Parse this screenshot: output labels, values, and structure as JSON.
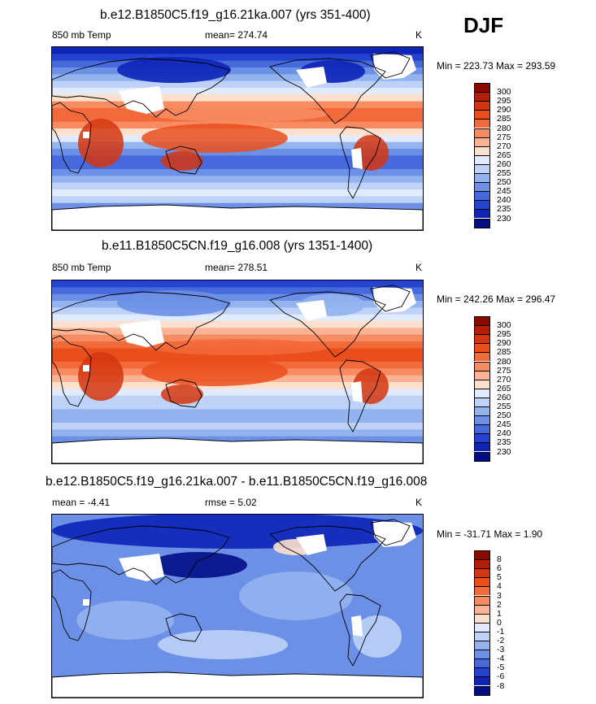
{
  "season": "DJF",
  "panels": [
    {
      "title": "b.e12.B1850C5.f19_g16.21ka.007 (yrs 351-400)",
      "left_label": "850 mb Temp",
      "center_label": "mean= 274.74",
      "right_label": "K",
      "minmax": "Min = 223.73 Max = 293.59",
      "colorbar": {
        "labels": [
          "300",
          "295",
          "290",
          "285",
          "280",
          "275",
          "270",
          "265",
          "260",
          "255",
          "250",
          "245",
          "240",
          "235",
          "230"
        ],
        "colors": [
          "#8a0a00",
          "#b41d06",
          "#d3360f",
          "#e94e1c",
          "#f36a3a",
          "#f78c63",
          "#fab493",
          "#fde0cc",
          "#e1ebfb",
          "#bdd2f6",
          "#93b3ee",
          "#6c90e6",
          "#4669dc",
          "#2444cf",
          "#0d24b7",
          "#030e86"
        ]
      },
      "field_offset": 0
    },
    {
      "title": "b.e11.B1850C5CN.f19_g16.008 (yrs 1351-1400)",
      "left_label": "850 mb Temp",
      "center_label": "mean= 278.51",
      "right_label": "K",
      "minmax": "Min = 242.26 Max = 296.47",
      "colorbar": {
        "labels": [
          "300",
          "295",
          "290",
          "285",
          "280",
          "275",
          "270",
          "265",
          "260",
          "255",
          "250",
          "245",
          "240",
          "235",
          "230"
        ],
        "colors": [
          "#8a0a00",
          "#b41d06",
          "#d3360f",
          "#e94e1c",
          "#f36a3a",
          "#f78c63",
          "#fab493",
          "#fde0cc",
          "#e1ebfb",
          "#bdd2f6",
          "#93b3ee",
          "#6c90e6",
          "#4669dc",
          "#2444cf",
          "#0d24b7",
          "#030e86"
        ]
      },
      "field_offset": 1
    },
    {
      "title": "b.e12.B1850C5.f19_g16.21ka.007 - b.e11.B1850C5CN.f19_g16.008",
      "left_label": "mean =  -4.41",
      "center_label": "rmse =   5.02",
      "right_label": "K",
      "minmax": "Min = -31.71 Max =   1.90",
      "colorbar": {
        "labels": [
          "8",
          "6",
          "5",
          "4",
          "3",
          "2",
          "1",
          "0",
          "-1",
          "-2",
          "-3",
          "-4",
          "-5",
          "-6",
          "-8"
        ],
        "colors": [
          "#8a0a00",
          "#b41d06",
          "#d3360f",
          "#e94e1c",
          "#f36a3a",
          "#f78c63",
          "#fab493",
          "#fde0cc",
          "#e1ebfb",
          "#bdd2f6",
          "#93b3ee",
          "#6c90e6",
          "#4669dc",
          "#2444cf",
          "#0d24b7",
          "#030e86"
        ]
      },
      "field_offset": 2
    }
  ],
  "chart_data": {
    "type": "heatmap",
    "title": "DJF",
    "variable": "850 mb Temp",
    "units": "K",
    "maps": [
      {
        "title": "b.e12.B1850C5.f19_g16.21ka.007 (yrs 351-400)",
        "mean": 274.74,
        "min": 223.73,
        "max": 293.59,
        "levels": [
          230,
          235,
          240,
          245,
          250,
          255,
          260,
          265,
          270,
          275,
          280,
          285,
          290,
          295,
          300
        ]
      },
      {
        "title": "b.e11.B1850C5CN.f19_g16.008 (yrs 1351-1400)",
        "mean": 278.51,
        "min": 242.26,
        "max": 296.47,
        "levels": [
          230,
          235,
          240,
          245,
          250,
          255,
          260,
          265,
          270,
          275,
          280,
          285,
          290,
          295,
          300
        ]
      },
      {
        "title": "b.e12.B1850C5.f19_g16.21ka.007 - b.e11.B1850C5CN.f19_g16.008",
        "mean": -4.41,
        "rmse": 5.02,
        "min": -31.71,
        "max": 1.9,
        "levels": [
          -8,
          -6,
          -5,
          -4,
          -3,
          -2,
          -1,
          0,
          1,
          2,
          3,
          4,
          5,
          6,
          8
        ]
      }
    ]
  }
}
